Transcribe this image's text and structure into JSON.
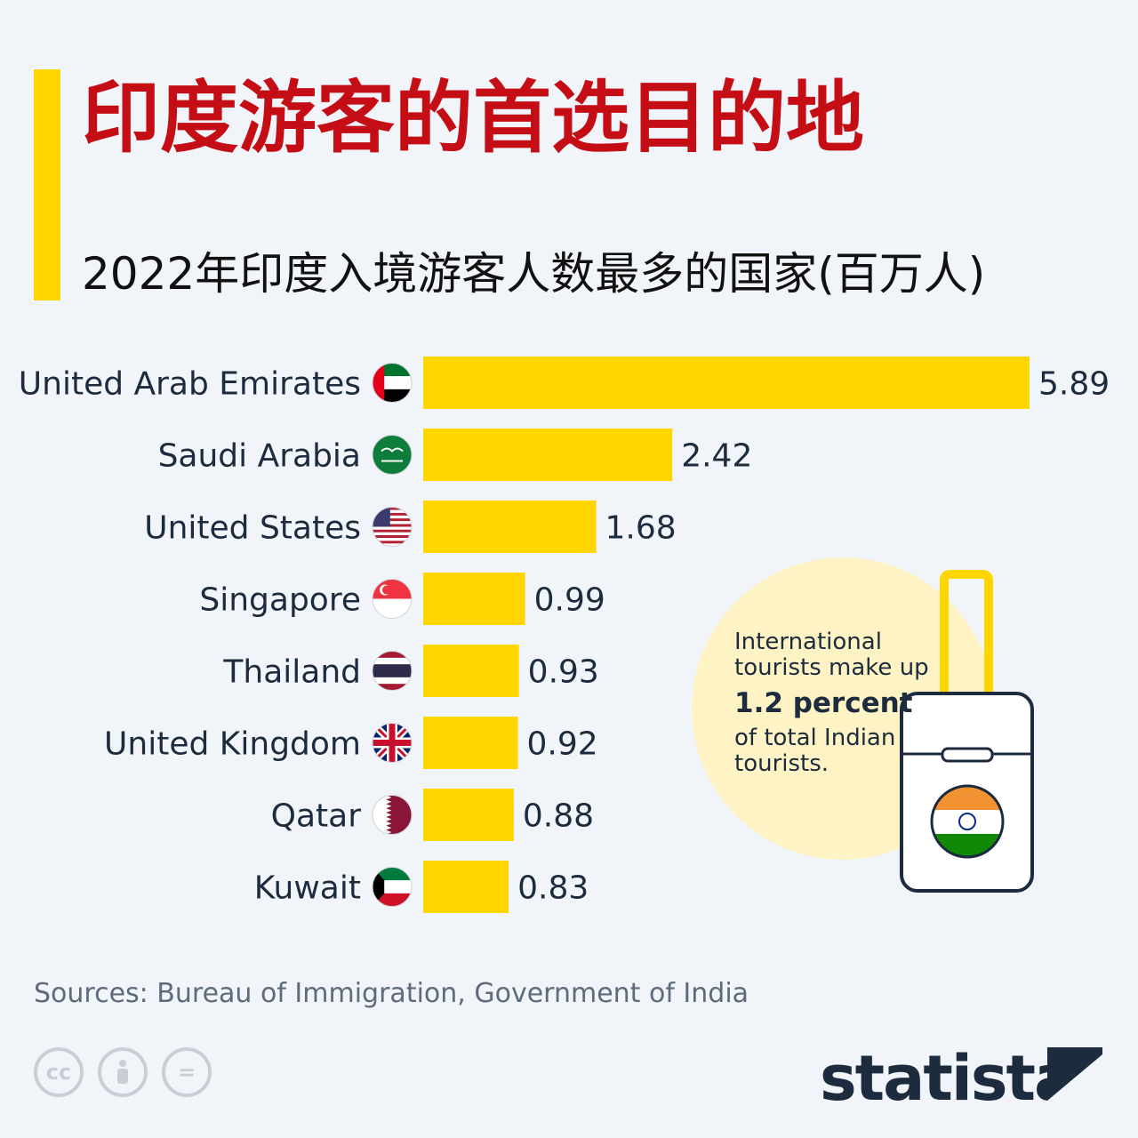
{
  "header": {
    "title": "印度游客的首选目的地",
    "subtitle": "2022年印度入境游客人数最多的国家(百万人)"
  },
  "chart_data": {
    "type": "bar",
    "orientation": "horizontal",
    "categories": [
      "United Arab Emirates",
      "Saudi Arabia",
      "United States",
      "Singapore",
      "Thailand",
      "United Kingdom",
      "Qatar",
      "Kuwait"
    ],
    "values": [
      5.89,
      2.42,
      1.68,
      0.99,
      0.93,
      0.92,
      0.88,
      0.83
    ],
    "value_labels": [
      "5.89",
      "2.42",
      "1.68",
      "0.99",
      "0.93",
      "0.92",
      "0.88",
      "0.83"
    ],
    "flags": [
      "uae-flag-icon",
      "saudi-flag-icon",
      "us-flag-icon",
      "singapore-flag-icon",
      "thailand-flag-icon",
      "uk-flag-icon",
      "qatar-flag-icon",
      "kuwait-flag-icon"
    ],
    "bar_color": "#ffd600",
    "title": "2022年印度入境游客人数最多的国家(百万人)",
    "xlabel": "",
    "ylabel": ""
  },
  "callout": {
    "line1": "International tourists make up",
    "highlight": "1.2 percent",
    "line2": "of total Indian tourists."
  },
  "footer": {
    "source": "Sources: Bureau of Immigration, Government of India",
    "license_icons": [
      "cc-icon",
      "attribution-icon",
      "no-derivatives-icon"
    ],
    "cc_label": "cc",
    "eq_label": "=",
    "brand": "statista"
  },
  "colors": {
    "accent": "#ffd600",
    "title": "#c40d14",
    "circle": "#fdf3c4"
  }
}
